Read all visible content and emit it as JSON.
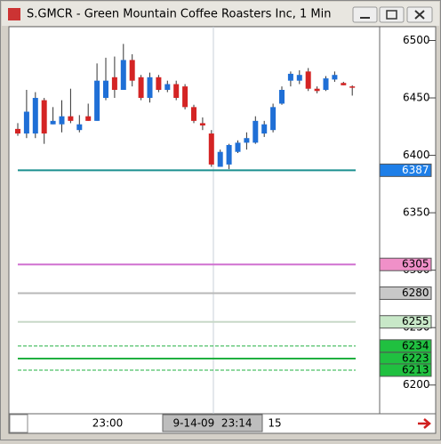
{
  "window_title": "S.GMCR - Green Mountain Coffee Roasters Inc, 1 Min",
  "chart_data": {
    "type": "candlestick",
    "categories": [
      null,
      null,
      null,
      null,
      null,
      null,
      null,
      null,
      null,
      null,
      null,
      null,
      null,
      null,
      null,
      null,
      null,
      null,
      null,
      null,
      null,
      null,
      null,
      null,
      null,
      null,
      null,
      null,
      null,
      null,
      null,
      null,
      null,
      null,
      null,
      null,
      null,
      null,
      null
    ],
    "open": [
      6423,
      6419,
      6419,
      6448,
      6427,
      6427,
      6434,
      6422,
      6434,
      6430,
      6450,
      6468,
      6457,
      6483,
      6468,
      6450,
      6468,
      6457,
      6462,
      6460,
      6442,
      6428,
      6419,
      6390,
      6392,
      6403,
      6411,
      6411,
      6419,
      6422,
      6445,
      6465,
      6465,
      6473,
      6458,
      6457,
      6466,
      6463,
      6460
    ],
    "high": [
      6428,
      6457,
      6455,
      6450,
      6442,
      6448,
      6458,
      6435,
      6445,
      6480,
      6485,
      6486,
      6497,
      6488,
      6470,
      6472,
      6470,
      6465,
      6465,
      6462,
      6444,
      6433,
      6422,
      6405,
      6410,
      6413,
      6420,
      6434,
      6430,
      6445,
      6460,
      6473,
      6474,
      6476,
      6460,
      6469,
      6473,
      6464,
      6461
    ],
    "low": [
      6417,
      6415,
      6415,
      6410,
      6427,
      6420,
      6428,
      6420,
      6430,
      6430,
      6448,
      6450,
      6457,
      6460,
      6448,
      6446,
      6455,
      6455,
      6448,
      6440,
      6428,
      6422,
      6390,
      6390,
      6388,
      6402,
      6405,
      6410,
      6416,
      6420,
      6444,
      6460,
      6462,
      6456,
      6454,
      6456,
      6464,
      6461,
      6452
    ],
    "close": [
      6419,
      6438,
      6450,
      6419,
      6430,
      6434,
      6430,
      6427,
      6430,
      6465,
      6465,
      6457,
      6483,
      6465,
      6450,
      6468,
      6457,
      6462,
      6450,
      6442,
      6430,
      6426,
      6392,
      6403,
      6409,
      6411,
      6415,
      6430,
      6427,
      6442,
      6457,
      6471,
      6470,
      6458,
      6456,
      6467,
      6470,
      6461,
      6459
    ],
    "up_color": "#1f6fd6",
    "down_color": "#d42424",
    "ylim": [
      6175,
      6512
    ],
    "yticks": [
      6200,
      6250,
      6300,
      6350,
      6400,
      6450,
      6500
    ],
    "levels": [
      {
        "value": 6387,
        "color": "#1a8f8f",
        "badge": "#1e7fe8"
      },
      {
        "value": 6305,
        "color": "#d070d0",
        "badge": "#f090c8"
      },
      {
        "value": 6280,
        "color": "#b8b8b8",
        "badge": "#c8c8c8"
      },
      {
        "value": 6255,
        "color": "#c8d8c8",
        "badge": "#c8e8c8"
      },
      {
        "value": 6234,
        "color": "#20b040",
        "badge": "#20c040",
        "dashed": true
      },
      {
        "value": 6223,
        "color": "#20b040",
        "badge": "#20c040"
      },
      {
        "value": 6213,
        "color": "#20b040",
        "badge": "#20c040",
        "dashed": true
      }
    ],
    "x_labels": [
      "23:00",
      "15"
    ],
    "cursor_label": "9-14-09  23:14"
  }
}
